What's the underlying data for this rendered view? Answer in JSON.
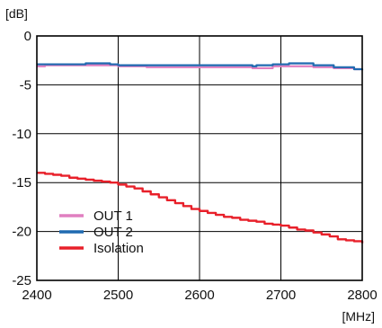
{
  "chart_data": {
    "type": "line",
    "title": "",
    "ylabel": "[dB]",
    "xlabel": "[MHz]",
    "xlim": [
      2400,
      2800
    ],
    "ylim": [
      -25,
      0
    ],
    "xticks": [
      2400,
      2500,
      2600,
      2700,
      2800
    ],
    "yticks": [
      0,
      -5,
      -10,
      -15,
      -20,
      -25
    ],
    "grid": true,
    "legend_position": "lower-left",
    "series": [
      {
        "name": "OUT 1",
        "color": "#e07fc0",
        "step": true,
        "x": [
          2400,
          2410,
          2430,
          2460,
          2475,
          2490,
          2500,
          2535,
          2600,
          2665,
          2670,
          2690,
          2710,
          2740,
          2765,
          2790,
          2800
        ],
        "y": [
          -3.1,
          -3.0,
          -3.0,
          -3.0,
          -3.0,
          -3.0,
          -3.1,
          -3.2,
          -3.2,
          -3.3,
          -3.3,
          -3.1,
          -3.1,
          -3.2,
          -3.3,
          -3.4,
          -3.4
        ]
      },
      {
        "name": "OUT 2",
        "color": "#1f6ab0",
        "step": true,
        "x": [
          2400,
          2410,
          2430,
          2460,
          2475,
          2490,
          2500,
          2535,
          2600,
          2665,
          2670,
          2690,
          2710,
          2740,
          2765,
          2790,
          2800
        ],
        "y": [
          -2.9,
          -2.9,
          -2.9,
          -2.8,
          -2.8,
          -2.9,
          -3.0,
          -3.0,
          -3.0,
          -3.1,
          -3.0,
          -2.9,
          -2.8,
          -3.0,
          -3.2,
          -3.4,
          -3.5
        ]
      },
      {
        "name": "Isolation",
        "color": "#e8202a",
        "step": true,
        "x": [
          2400,
          2410,
          2420,
          2430,
          2440,
          2450,
          2460,
          2470,
          2480,
          2490,
          2500,
          2510,
          2520,
          2530,
          2540,
          2550,
          2560,
          2570,
          2580,
          2590,
          2600,
          2610,
          2620,
          2630,
          2640,
          2650,
          2660,
          2670,
          2680,
          2690,
          2700,
          2710,
          2720,
          2730,
          2740,
          2750,
          2760,
          2770,
          2780,
          2790,
          2800
        ],
        "y": [
          -14.0,
          -14.1,
          -14.2,
          -14.3,
          -14.5,
          -14.6,
          -14.7,
          -14.8,
          -14.9,
          -15.0,
          -15.2,
          -15.4,
          -15.6,
          -15.9,
          -16.2,
          -16.5,
          -16.8,
          -17.1,
          -17.4,
          -17.7,
          -17.9,
          -18.1,
          -18.3,
          -18.5,
          -18.6,
          -18.8,
          -18.9,
          -19.0,
          -19.2,
          -19.3,
          -19.4,
          -19.6,
          -19.8,
          -19.9,
          -20.1,
          -20.3,
          -20.5,
          -20.8,
          -20.9,
          -21.0,
          -21.2
        ]
      }
    ]
  }
}
